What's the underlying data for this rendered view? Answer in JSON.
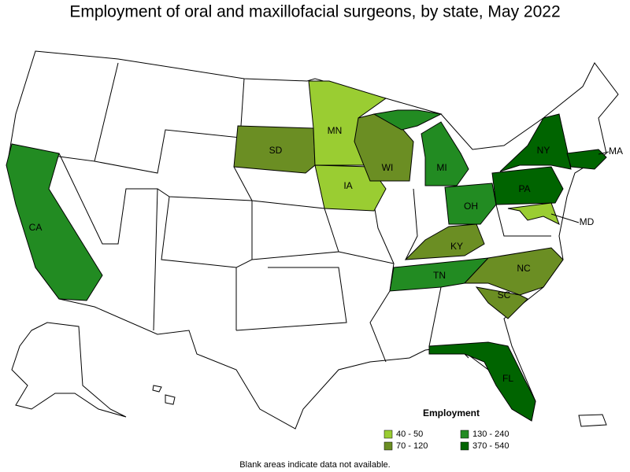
{
  "title": "Employment of oral and maxillofacial surgeons, by state, May 2022",
  "states": [
    {
      "label": "CA",
      "class": 1
    },
    {
      "label": "SD",
      "class": 2
    },
    {
      "label": "MN",
      "class": 0
    },
    {
      "label": "IA",
      "class": 0
    },
    {
      "label": "WI",
      "class": 2
    },
    {
      "label": "MI",
      "class": 1
    },
    {
      "label": "OH",
      "class": 1
    },
    {
      "label": "KY",
      "class": 2
    },
    {
      "label": "TN",
      "class": 1
    },
    {
      "label": "NC",
      "class": 2
    },
    {
      "label": "SC",
      "class": 2
    },
    {
      "label": "FL",
      "class": 3
    },
    {
      "label": "NY",
      "class": 3
    },
    {
      "label": "PA",
      "class": 3
    },
    {
      "label": "MA",
      "class": 3
    },
    {
      "label": "MD",
      "class": 0
    }
  ],
  "legend": {
    "title": "Employment",
    "items": [
      {
        "label": "40 - 50",
        "color": "#9acd32"
      },
      {
        "label": "130 - 240",
        "color": "#228b22"
      },
      {
        "label": "70 - 120",
        "color": "#6b8e23"
      },
      {
        "label": "370 - 540",
        "color": "#006400"
      }
    ]
  },
  "note": "Blank areas indicate data not available."
}
